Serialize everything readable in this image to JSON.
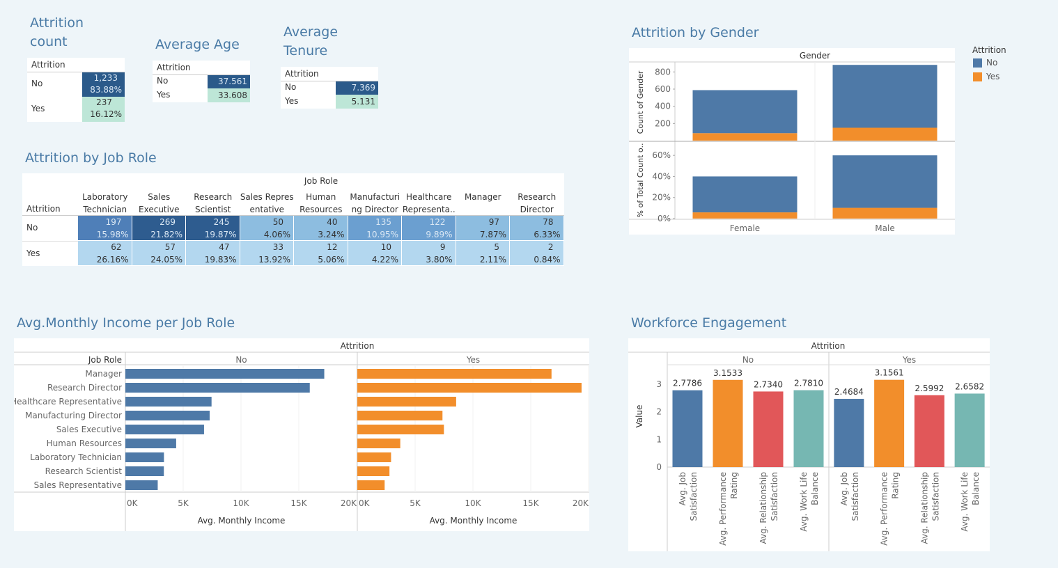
{
  "titles": {
    "attrition_count": [
      "Attrition",
      "count"
    ],
    "average_age": "Average Age",
    "average_tenure": [
      "Average",
      "Tenure"
    ],
    "attrition_by_gender": "Attrition by Gender",
    "attrition_by_job_role": "Attrition by Job Role",
    "avg_monthly_income": "Avg.Monthly Income per Job Role",
    "workforce_engagement": "Workforce Engagement"
  },
  "kpi_count": {
    "header": "Attrition",
    "rows": [
      {
        "label": "No",
        "value": "1,233",
        "pct": "83.88%"
      },
      {
        "label": "Yes",
        "value": "237",
        "pct": "16.12%"
      }
    ]
  },
  "kpi_age": {
    "header": "Attrition",
    "rows": [
      {
        "label": "No",
        "value": "37.561"
      },
      {
        "label": "Yes",
        "value": "33.608"
      }
    ]
  },
  "kpi_tenure": {
    "header": "Attrition",
    "rows": [
      {
        "label": "No",
        "value": "7.369"
      },
      {
        "label": "Yes",
        "value": "5.131"
      }
    ]
  },
  "job_role_table": {
    "col_group_header": "Job Role",
    "row_header": "Attrition",
    "columns": [
      [
        "Laboratory",
        "Technician"
      ],
      [
        "Sales",
        "Executive"
      ],
      [
        "Research",
        "Scientist"
      ],
      [
        "Sales Repres",
        "entative"
      ],
      [
        "Human",
        "Resources"
      ],
      [
        "Manufacturi",
        "ng Director"
      ],
      [
        "Healthcare",
        "Representa.."
      ],
      [
        "",
        "Manager"
      ],
      [
        "Research",
        "Director"
      ]
    ],
    "rows": [
      {
        "label": "No",
        "values": [
          "197",
          "269",
          "245",
          "50",
          "40",
          "135",
          "122",
          "97",
          "78"
        ],
        "pcts": [
          "15.98%",
          "21.82%",
          "19.87%",
          "4.06%",
          "3.24%",
          "10.95%",
          "9.89%",
          "7.87%",
          "6.33%"
        ],
        "shade": [
          3,
          4,
          4,
          1,
          1,
          2,
          2,
          1,
          1
        ]
      },
      {
        "label": "Yes",
        "values": [
          "62",
          "57",
          "47",
          "33",
          "12",
          "10",
          "9",
          "5",
          "2"
        ],
        "pcts": [
          "26.16%",
          "24.05%",
          "19.83%",
          "13.92%",
          "5.06%",
          "4.22%",
          "3.80%",
          "2.11%",
          "0.84%"
        ],
        "shade": [
          0,
          0,
          0,
          0,
          0,
          0,
          0,
          0,
          0
        ]
      }
    ],
    "shade_colors": [
      "#b3d7ef",
      "#8dbde0",
      "#6b9fd0",
      "#4f7fb8",
      "#2e5c8f"
    ]
  },
  "chart_data": [
    {
      "id": "gender",
      "type": "bar",
      "title": "Attrition by Gender",
      "column_header": "Gender",
      "categories": [
        "Female",
        "Male"
      ],
      "legend_title": "Attrition",
      "legend": [
        {
          "name": "No",
          "color": "#4e79a7"
        },
        {
          "name": "Yes",
          "color": "#f28e2b"
        }
      ],
      "count_panel": {
        "ylabel": "Count of Gender",
        "ylim": [
          0,
          900
        ],
        "ticks": [
          200,
          400,
          600,
          800
        ],
        "series": [
          {
            "name": "No",
            "values": [
              501,
              732
            ]
          },
          {
            "name": "Yes",
            "values": [
              87,
              150
            ]
          }
        ]
      },
      "pct_panel": {
        "ylabel": "% of Total Count o..",
        "ylim": [
          0,
          0.72
        ],
        "ticks": [
          "0%",
          "20%",
          "40%",
          "60%"
        ],
        "tick_values": [
          0,
          0.2,
          0.4,
          0.6
        ],
        "series": [
          {
            "name": "No",
            "values": [
              0.341,
              0.498
            ]
          },
          {
            "name": "Yes",
            "values": [
              0.059,
              0.102
            ]
          }
        ]
      }
    },
    {
      "id": "income",
      "type": "bar",
      "title": "Avg.Monthly Income per Job Role",
      "column_header": "Attrition",
      "row_header": "Job Role",
      "xlabel": "Avg. Monthly Income",
      "xlim": [
        0,
        20000
      ],
      "ticks": [
        "0K",
        "5K",
        "10K",
        "15K",
        "20K"
      ],
      "categories": [
        "Manager",
        "Research Director",
        "Healthcare Representative",
        "Manufacturing Director",
        "Sales Executive",
        "Human Resources",
        "Laboratory Technician",
        "Research Scientist",
        "Sales Representative"
      ],
      "series": [
        {
          "name": "No",
          "color": "#4e79a7",
          "values": [
            17202,
            15948,
            7453,
            7290,
            6804,
            4392,
            3337,
            3328,
            2798
          ]
        },
        {
          "name": "Yes",
          "color": "#f28e2b",
          "values": [
            16797,
            19395,
            8548,
            7366,
            7490,
            3716,
            2919,
            2781,
            2364
          ]
        }
      ]
    },
    {
      "id": "engagement",
      "type": "bar",
      "title": "Workforce Engagement",
      "column_header": "Attrition",
      "ylabel": "Value",
      "ylim": [
        0,
        3.5
      ],
      "ticks": [
        "0",
        "1",
        "2",
        "3"
      ],
      "categories": [
        [
          "Avg. Job",
          "Satisfaction"
        ],
        [
          "Avg. Performance",
          "Rating"
        ],
        [
          "Avg. Relationship",
          "Satisfaction"
        ],
        [
          "Avg. Work Life",
          "Balance"
        ]
      ],
      "colors": [
        "#4e79a7",
        "#f28e2b",
        "#e15759",
        "#76b7b2"
      ],
      "groups": [
        {
          "name": "No",
          "values": [
            2.7786,
            3.1533,
            2.734,
            2.781
          ],
          "labels": [
            "2.7786",
            "3.1533",
            "2.7340",
            "2.7810"
          ]
        },
        {
          "name": "Yes",
          "values": [
            2.4684,
            3.1561,
            2.5992,
            2.6582
          ],
          "labels": [
            "2.4684",
            "3.1561",
            "2.5992",
            "2.6582"
          ]
        }
      ]
    }
  ]
}
